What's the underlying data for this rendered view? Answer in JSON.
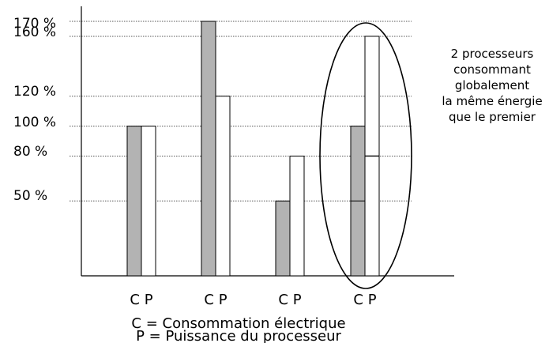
{
  "chart_data": {
    "type": "bar",
    "categories": [
      "C P",
      "C P",
      "C P",
      "C P"
    ],
    "series": [
      {
        "name": "C",
        "values": [
          100,
          170,
          50,
          100
        ],
        "color": "#b3b3b3"
      },
      {
        "name": "P",
        "values": [
          100,
          120,
          80,
          160
        ],
        "color": "#ffffff"
      }
    ],
    "y_ticks": [
      {
        "value": 170,
        "label": "170 %"
      },
      {
        "value": 160,
        "label": "160 %"
      },
      {
        "value": 120,
        "label": "120 %"
      },
      {
        "value": 100,
        "label": "100 %"
      },
      {
        "value": 80,
        "label": "80 %"
      },
      {
        "value": 50,
        "label": "50 %"
      }
    ],
    "ylim": [
      0,
      170
    ],
    "grid": "dotted horizontal lines at tick values",
    "stacked_last_group": {
      "C_segments": [
        50,
        50
      ],
      "P_segments": [
        80,
        80
      ]
    },
    "legend": [
      "C = Consommation électrique",
      "P = Puissance du processeur"
    ],
    "annotation": [
      "2 processeurs",
      "consommant",
      "globalement",
      "la même énergie",
      "que le premier"
    ]
  }
}
